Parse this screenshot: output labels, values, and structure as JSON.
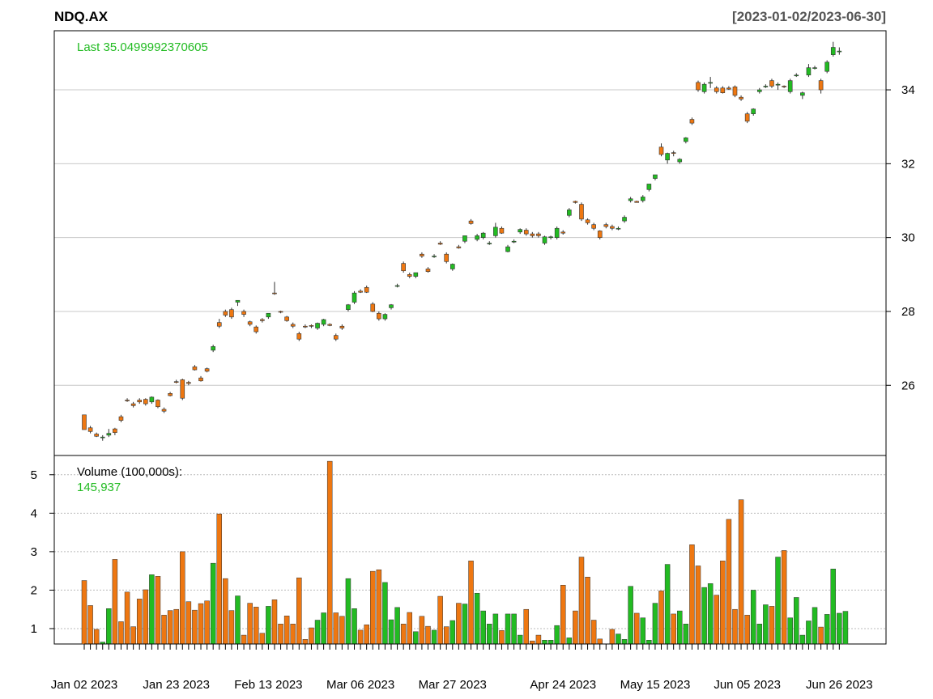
{
  "chart_data": {
    "type": "candlestick",
    "symbol": "NDQ.AX",
    "date_range_label": "[2023-01-02/2023-06-30]",
    "last_label": "Last 35.0499992370605",
    "price_axis": {
      "ticks": [
        26,
        28,
        30,
        32,
        34
      ],
      "range": [
        24.1,
        35.6
      ],
      "position": "right",
      "grid": true
    },
    "volume_label": "Volume (100,000s):",
    "volume_last": "145,937",
    "volume_axis": {
      "ticks": [
        1,
        2,
        3,
        4,
        5
      ],
      "range": [
        0.6,
        5.5
      ],
      "position": "left",
      "grid": "dotted"
    },
    "x_labels": [
      "Jan 02 2023",
      "Jan 23 2023",
      "Feb 13 2023",
      "Mar 06 2023",
      "Mar 27 2023",
      "Apr 24 2023",
      "May 15 2023",
      "Jun 05 2023",
      "Jun 26 2023"
    ],
    "x_label_indices": [
      0,
      15,
      30,
      45,
      60,
      78,
      93,
      108,
      123
    ],
    "up_color": "#22bb22",
    "down_color": "#ee7711",
    "ohlc": [
      [
        25.2,
        25.2,
        24.8,
        24.8
      ],
      [
        24.85,
        24.9,
        24.7,
        24.75
      ],
      [
        24.68,
        24.72,
        24.6,
        24.62
      ],
      [
        24.58,
        24.65,
        24.5,
        24.6
      ],
      [
        24.65,
        24.82,
        24.6,
        24.7
      ],
      [
        24.82,
        24.85,
        24.65,
        24.72
      ],
      [
        25.15,
        25.2,
        25.0,
        25.05
      ],
      [
        25.6,
        25.65,
        25.55,
        25.58
      ],
      [
        25.5,
        25.55,
        25.4,
        25.45
      ],
      [
        25.6,
        25.65,
        25.5,
        25.55
      ],
      [
        25.62,
        25.65,
        25.45,
        25.5
      ],
      [
        25.55,
        25.7,
        25.5,
        25.68
      ],
      [
        25.6,
        25.62,
        25.38,
        25.42
      ],
      [
        25.35,
        25.4,
        25.25,
        25.3
      ],
      [
        25.78,
        25.82,
        25.7,
        25.72
      ],
      [
        26.1,
        26.15,
        26.05,
        26.08
      ],
      [
        26.15,
        26.18,
        25.6,
        25.65
      ],
      [
        26.08,
        26.12,
        26.0,
        26.05
      ],
      [
        26.5,
        26.55,
        26.4,
        26.42
      ],
      [
        26.2,
        26.25,
        26.1,
        26.12
      ],
      [
        26.45,
        26.48,
        26.35,
        26.38
      ],
      [
        26.95,
        27.1,
        26.9,
        27.05
      ],
      [
        27.7,
        27.8,
        27.55,
        27.6
      ],
      [
        28.0,
        28.05,
        27.85,
        27.9
      ],
      [
        28.05,
        28.1,
        27.8,
        27.85
      ],
      [
        28.25,
        28.3,
        28.15,
        28.3
      ],
      [
        28.0,
        28.05,
        27.85,
        27.92
      ],
      [
        27.72,
        27.75,
        27.6,
        27.65
      ],
      [
        27.58,
        27.62,
        27.4,
        27.45
      ],
      [
        27.78,
        27.82,
        27.7,
        27.75
      ],
      [
        27.85,
        27.95,
        27.8,
        27.95
      ],
      [
        28.5,
        28.8,
        28.45,
        28.48
      ],
      [
        28.0,
        28.02,
        27.95,
        27.98
      ],
      [
        27.85,
        27.88,
        27.72,
        27.75
      ],
      [
        27.65,
        27.7,
        27.55,
        27.6
      ],
      [
        27.4,
        27.45,
        27.2,
        27.25
      ],
      [
        27.6,
        27.65,
        27.55,
        27.58
      ],
      [
        27.62,
        27.65,
        27.55,
        27.6
      ],
      [
        27.55,
        27.7,
        27.5,
        27.68
      ],
      [
        27.65,
        27.8,
        27.6,
        27.78
      ],
      [
        27.65,
        27.68,
        27.6,
        27.62
      ],
      [
        27.35,
        27.4,
        27.2,
        27.25
      ],
      [
        27.6,
        27.65,
        27.5,
        27.55
      ],
      [
        28.05,
        28.2,
        28.0,
        28.18
      ],
      [
        28.25,
        28.55,
        28.2,
        28.5
      ],
      [
        28.55,
        28.6,
        28.5,
        28.52
      ],
      [
        28.65,
        28.7,
        28.5,
        28.52
      ],
      [
        28.2,
        28.25,
        27.98,
        28.0
      ],
      [
        27.95,
        28.0,
        27.75,
        27.8
      ],
      [
        27.8,
        27.95,
        27.75,
        27.92
      ],
      [
        28.1,
        28.2,
        28.05,
        28.18
      ],
      [
        28.7,
        28.75,
        28.65,
        28.7
      ],
      [
        29.3,
        29.35,
        29.05,
        29.1
      ],
      [
        29.0,
        29.05,
        28.9,
        28.95
      ],
      [
        28.95,
        29.05,
        28.9,
        29.05
      ],
      [
        29.55,
        29.6,
        29.45,
        29.5
      ],
      [
        29.15,
        29.2,
        29.05,
        29.08
      ],
      [
        29.5,
        29.55,
        29.45,
        29.5
      ],
      [
        29.85,
        29.9,
        29.8,
        29.82
      ],
      [
        29.55,
        29.6,
        29.3,
        29.35
      ],
      [
        29.15,
        29.3,
        29.1,
        29.28
      ],
      [
        29.75,
        29.8,
        29.7,
        29.72
      ],
      [
        29.9,
        30.05,
        29.85,
        30.05
      ],
      [
        30.45,
        30.5,
        30.35,
        30.38
      ],
      [
        29.95,
        30.1,
        29.9,
        30.05
      ],
      [
        30.0,
        30.15,
        29.95,
        30.12
      ],
      [
        29.85,
        29.9,
        29.8,
        29.85
      ],
      [
        30.05,
        30.4,
        30.0,
        30.28
      ],
      [
        30.25,
        30.3,
        30.1,
        30.12
      ],
      [
        29.62,
        29.8,
        29.6,
        29.75
      ],
      [
        29.9,
        29.95,
        29.85,
        29.9
      ],
      [
        30.15,
        30.25,
        30.1,
        30.22
      ],
      [
        30.2,
        30.25,
        30.05,
        30.1
      ],
      [
        30.1,
        30.15,
        30.0,
        30.05
      ],
      [
        30.1,
        30.15,
        30.0,
        30.05
      ],
      [
        29.85,
        30.05,
        29.8,
        30.02
      ],
      [
        30.0,
        30.05,
        29.95,
        30.02
      ],
      [
        30.0,
        30.3,
        29.95,
        30.25
      ],
      [
        30.15,
        30.2,
        30.08,
        30.12
      ],
      [
        30.6,
        30.8,
        30.55,
        30.75
      ],
      [
        30.98,
        31.0,
        30.92,
        30.95
      ],
      [
        30.9,
        30.95,
        30.45,
        30.5
      ],
      [
        30.48,
        30.52,
        30.35,
        30.4
      ],
      [
        30.35,
        30.4,
        30.2,
        30.25
      ],
      [
        30.18,
        30.2,
        29.95,
        30.0
      ],
      [
        30.35,
        30.4,
        30.25,
        30.3
      ],
      [
        30.3,
        30.35,
        30.2,
        30.25
      ],
      [
        30.25,
        30.3,
        30.2,
        30.25
      ],
      [
        30.45,
        30.6,
        30.4,
        30.55
      ],
      [
        31.0,
        31.1,
        30.95,
        31.05
      ],
      [
        30.98,
        31.0,
        30.95,
        30.95
      ],
      [
        31.0,
        31.15,
        30.95,
        31.1
      ],
      [
        31.3,
        31.45,
        31.25,
        31.45
      ],
      [
        31.6,
        31.7,
        31.55,
        31.7
      ],
      [
        32.45,
        32.55,
        32.2,
        32.25
      ],
      [
        32.1,
        32.3,
        32.0,
        32.28
      ],
      [
        32.3,
        32.35,
        32.2,
        32.28
      ],
      [
        32.05,
        32.15,
        32.0,
        32.12
      ],
      [
        32.6,
        32.72,
        32.55,
        32.7
      ],
      [
        33.2,
        33.25,
        33.05,
        33.1
      ],
      [
        34.2,
        34.25,
        33.95,
        34.0
      ],
      [
        33.95,
        34.2,
        33.9,
        34.15
      ],
      [
        34.2,
        34.35,
        34.05,
        34.2
      ],
      [
        34.05,
        34.1,
        33.9,
        33.95
      ],
      [
        34.05,
        34.1,
        33.9,
        33.92
      ],
      [
        34.05,
        34.1,
        34.0,
        34.02
      ],
      [
        34.08,
        34.12,
        33.8,
        33.85
      ],
      [
        33.8,
        33.85,
        33.7,
        33.75
      ],
      [
        33.35,
        33.4,
        33.1,
        33.15
      ],
      [
        33.35,
        33.5,
        33.3,
        33.48
      ],
      [
        33.95,
        34.05,
        33.9,
        34.0
      ],
      [
        34.1,
        34.15,
        34.05,
        34.1
      ],
      [
        34.25,
        34.3,
        34.05,
        34.1
      ],
      [
        34.15,
        34.2,
        34.0,
        34.15
      ],
      [
        34.1,
        34.12,
        34.05,
        34.08
      ],
      [
        33.95,
        34.3,
        33.9,
        34.25
      ],
      [
        34.4,
        34.45,
        34.35,
        34.4
      ],
      [
        33.85,
        33.95,
        33.75,
        33.92
      ],
      [
        34.4,
        34.7,
        34.35,
        34.6
      ],
      [
        34.6,
        34.65,
        34.55,
        34.6
      ],
      [
        34.25,
        34.3,
        33.9,
        34.0
      ],
      [
        34.5,
        34.8,
        34.45,
        34.75
      ],
      [
        34.95,
        35.3,
        34.9,
        35.15
      ],
      [
        35.05,
        35.15,
        34.95,
        35.05
      ]
    ],
    "volume": [
      2.25,
      1.6,
      0.98,
      0.65,
      1.52,
      2.8,
      1.18,
      1.95,
      1.05,
      1.77,
      2.01,
      2.4,
      2.36,
      1.35,
      1.47,
      1.5,
      3.0,
      1.7,
      1.48,
      1.65,
      1.72,
      2.7,
      3.98,
      2.3,
      1.47,
      1.85,
      0.83,
      1.66,
      1.56,
      0.88,
      1.58,
      1.75,
      1.12,
      1.33,
      1.12,
      2.32,
      0.72,
      1.02,
      1.22,
      1.41,
      5.35,
      1.41,
      1.32,
      2.3,
      1.52,
      0.96,
      1.1,
      2.49,
      2.53,
      2.2,
      1.23,
      1.55,
      1.12,
      1.42,
      0.92,
      1.32,
      1.06,
      0.96,
      1.84,
      1.05,
      1.21,
      1.66,
      1.64,
      2.76,
      1.92,
      1.46,
      1.12,
      1.38,
      0.95,
      1.38,
      1.38,
      0.83,
      1.5,
      0.68,
      0.83,
      0.7,
      0.7,
      1.08,
      2.13,
      0.76,
      1.46,
      2.86,
      2.34,
      1.22,
      0.73,
      0.58,
      0.98,
      0.86,
      0.72,
      2.1,
      1.4,
      1.28,
      0.7,
      1.66,
      1.98,
      2.67,
      1.38,
      1.46,
      1.12,
      3.18,
      2.63,
      2.07,
      2.17,
      1.87,
      2.76,
      3.84,
      1.5,
      4.35,
      1.35,
      2.0,
      1.12,
      1.62,
      1.58,
      2.86,
      3.03,
      1.28,
      1.81,
      0.83,
      1.2,
      1.55,
      1.04,
      1.37,
      2.55,
      1.4,
      1.45
    ]
  }
}
